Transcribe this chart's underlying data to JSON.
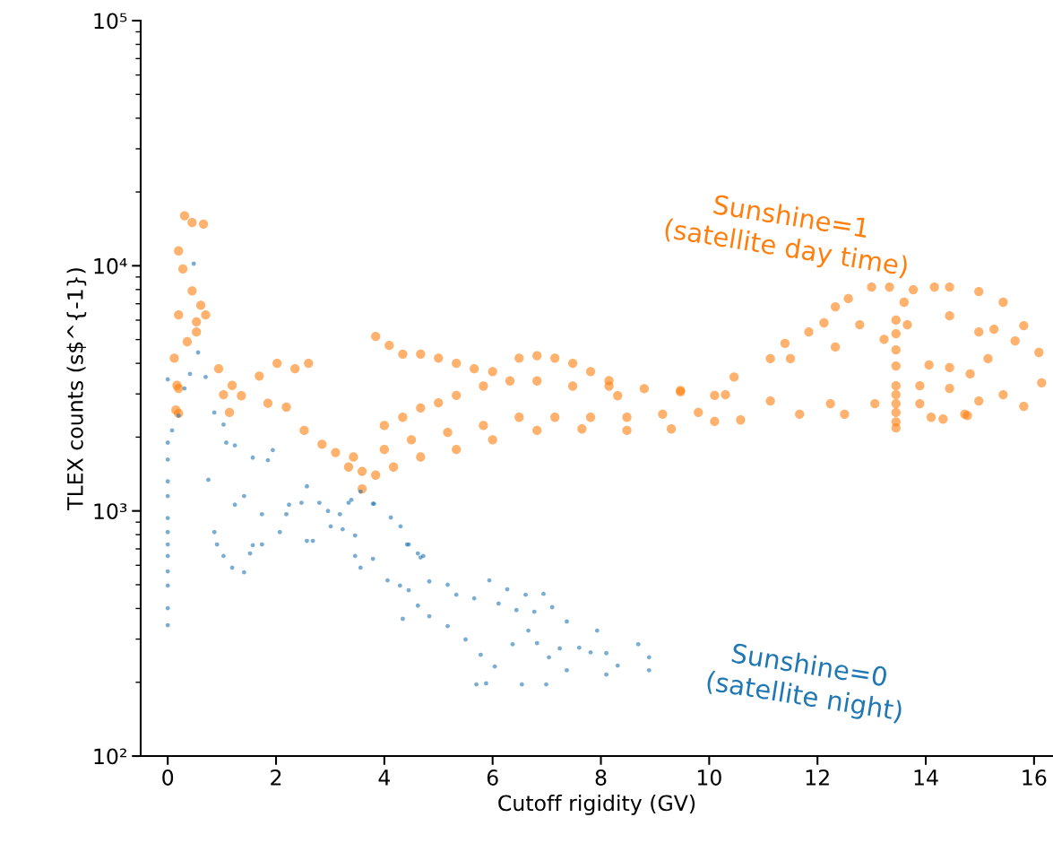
{
  "chart_data": {
    "type": "scatter",
    "xlabel": "Cutoff rigidity (GV)",
    "ylabel": "TLEX counts (s$^{-1})",
    "log": "y",
    "marker": "circle",
    "xlim": [
      -0.5,
      16.35
    ],
    "xticks": [
      0,
      2,
      4,
      6,
      8,
      10,
      12,
      14,
      16
    ],
    "ylim": [
      100,
      100000
    ],
    "yticks": [
      {
        "value": 100,
        "label": "10²"
      },
      {
        "value": 1000,
        "label": "10³"
      },
      {
        "value": 10000,
        "label": "10⁴"
      },
      {
        "value": 100000,
        "label": "10⁵"
      }
    ],
    "series": [
      {
        "name": "Sunshine=1\n(satellite day time)",
        "color": "#ff7f0e",
        "x": [
          0.31,
          0.45,
          0.66,
          0.2,
          0.28,
          0.45,
          0.61,
          0.2,
          0.12,
          0.17,
          0.2,
          0.53,
          0.7,
          0.36,
          0.94,
          1.19,
          1.36,
          1.69,
          2.02,
          2.35,
          2.6,
          1.85,
          2.19,
          2.52,
          2.85,
          3.1,
          3.34,
          3.43,
          3.59,
          3.59,
          3.84,
          4.09,
          4.34,
          4.67,
          5.0,
          5.33,
          5.66,
          6.0,
          6.49,
          6.82,
          7.15,
          7.48,
          7.81,
          8.15,
          8.31,
          4.0,
          4.34,
          4.67,
          5.0,
          5.33,
          5.83,
          6.32,
          6.82,
          7.48,
          8.15,
          8.8,
          9.47,
          10.1,
          4.0,
          4.5,
          5.17,
          5.83,
          6.49,
          7.15,
          7.81,
          8.48,
          9.14,
          9.8,
          3.84,
          4.17,
          4.67,
          5.33,
          6.0,
          6.82,
          7.65,
          8.48,
          9.3,
          10.1,
          12.12,
          12.33,
          12.57,
          13.0,
          13.33,
          13.77,
          14.16,
          14.44,
          14.98,
          15.43,
          15.81,
          16.09,
          16.14,
          11.84,
          12.78,
          13.6,
          14.44,
          15.26,
          15.65,
          11.5,
          12.33,
          13.23,
          13.66,
          14.98,
          14.06,
          14.44,
          14.82,
          15.15,
          13.89,
          14.44,
          14.98,
          14.1,
          14.77,
          15.43,
          15.81,
          13.45,
          13.45,
          13.45,
          13.45,
          13.45,
          13.45,
          13.45,
          13.45,
          13.45,
          13.45,
          10.58,
          11.67,
          12.5,
          14.32,
          14.72,
          10.3,
          11.13,
          12.24,
          13.06,
          13.89,
          9.47,
          10.46,
          11.13,
          11.4,
          0.15,
          0.2,
          0.53,
          1.03,
          1.14
        ],
        "values": [
          16000,
          15000,
          14800,
          11500,
          9700,
          7900,
          6900,
          6300,
          4200,
          3250,
          2500,
          5900,
          6300,
          4900,
          3800,
          3250,
          2950,
          3550,
          4000,
          3800,
          4000,
          2750,
          2650,
          2130,
          1870,
          1730,
          1510,
          1660,
          1450,
          1230,
          5150,
          4730,
          4360,
          4360,
          4200,
          4000,
          3800,
          3700,
          4200,
          4300,
          4200,
          4000,
          3700,
          3400,
          2950,
          2230,
          2410,
          2630,
          2760,
          2960,
          3230,
          3390,
          3390,
          3230,
          3230,
          3150,
          3100,
          2960,
          1780,
          1950,
          2090,
          2230,
          2410,
          2410,
          2410,
          2410,
          2480,
          2520,
          1400,
          1510,
          1660,
          1780,
          1950,
          2130,
          2160,
          2130,
          2160,
          2320,
          5850,
          6800,
          7350,
          8190,
          8190,
          7980,
          8190,
          8190,
          7850,
          7100,
          5700,
          4430,
          3330,
          5370,
          5750,
          7100,
          6250,
          5510,
          4940,
          4180,
          4660,
          5010,
          5750,
          5370,
          3940,
          3840,
          3620,
          4180,
          3240,
          3160,
          2810,
          2410,
          2450,
          2980,
          2670,
          6000,
          5280,
          4540,
          3900,
          3240,
          2980,
          2740,
          2520,
          2310,
          2180,
          2350,
          2480,
          2480,
          2370,
          2480,
          2980,
          2810,
          2740,
          2740,
          2740,
          3060,
          3520,
          4180,
          4820,
          2580,
          3160,
          5370,
          2980,
          2520
        ]
      },
      {
        "name": "Sunshine=0\n(satellite night)",
        "color": "#1f77b4",
        "x": [
          0,
          0,
          0,
          0,
          0,
          0,
          0,
          0,
          0,
          0,
          0,
          0,
          0,
          0.08,
          0.2,
          0.31,
          0.41,
          0.56,
          0.48,
          0.7,
          0.86,
          1.03,
          1.08,
          1.24,
          1.57,
          1.85,
          1.94,
          2.57,
          2.24,
          1.74,
          1.41,
          1.24,
          0.75,
          0.86,
          0.91,
          1.03,
          1.19,
          1.41,
          1.52,
          1.57,
          1.74,
          2.07,
          2.19,
          2.47,
          2.8,
          2.96,
          3.18,
          3.34,
          3.56,
          3.79,
          4.12,
          2.57,
          2.68,
          3.01,
          3.23,
          3.46,
          3.46,
          3.56,
          3.79,
          4.06,
          4.29,
          4.45,
          4.62,
          4.72,
          4.34,
          4.62,
          3.39,
          3.81,
          4.3,
          4.42,
          4.67,
          4.45,
          4.83,
          5.17,
          5.33,
          5.66,
          5.94,
          6.27,
          6.61,
          6.94,
          6.11,
          6.44,
          6.77,
          7.1,
          4.83,
          5.17,
          5.5,
          5.78,
          6.04,
          5.7,
          5.88,
          6.37,
          6.66,
          6.82,
          7.04,
          7.24,
          7.37,
          7.6,
          7.81,
          7.93,
          8.1,
          8.31,
          8.69,
          8.89,
          8.89,
          6.54,
          6.99,
          8.1,
          7.37
        ],
        "values": [
          3440,
          1900,
          1620,
          1320,
          1150,
          935,
          820,
          730,
          655,
          567,
          496,
          401,
          342,
          2130,
          2450,
          3160,
          3620,
          4430,
          10200,
          3520,
          2520,
          2250,
          1900,
          1850,
          1650,
          1610,
          1770,
          1260,
          1060,
          970,
          1150,
          1060,
          1340,
          820,
          730,
          655,
          587,
          562,
          671,
          725,
          730,
          820,
          970,
          1080,
          1080,
          1000,
          970,
          1080,
          1200,
          1070,
          940,
          755,
          755,
          865,
          842,
          794,
          655,
          587,
          638,
          521,
          496,
          730,
          671,
          655,
          363,
          411,
          1110,
          1070,
          865,
          730,
          646,
          475,
          516,
          500,
          455,
          440,
          521,
          479,
          455,
          459,
          419,
          394,
          388,
          405,
          372,
          339,
          299,
          259,
          232,
          196,
          198,
          286,
          325,
          289,
          253,
          275,
          354,
          277,
          265,
          325,
          263,
          234,
          286,
          253,
          224,
          196,
          196,
          215,
          224
        ]
      }
    ]
  }
}
